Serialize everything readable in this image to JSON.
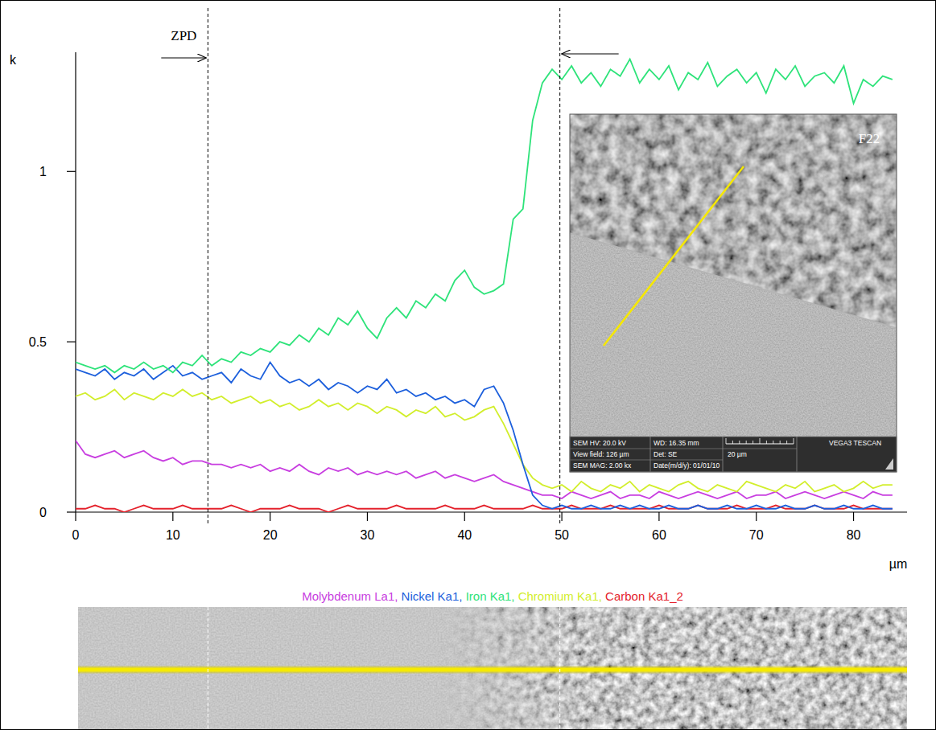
{
  "chart_data": {
    "type": "line",
    "x_label": "µm",
    "y_label": "k",
    "xlim": [
      0,
      85.5
    ],
    "ylim": [
      0,
      1.35
    ],
    "xticks": [
      0,
      10,
      20,
      30,
      40,
      50,
      60,
      70,
      80
    ],
    "yticks": [
      0,
      0.5,
      1
    ],
    "grid": false,
    "legend": "bottom",
    "legend_separator": ", ",
    "x": [
      0,
      1,
      2,
      3,
      4,
      5,
      6,
      7,
      8,
      9,
      10,
      11,
      12,
      13,
      14,
      15,
      16,
      17,
      18,
      19,
      20,
      21,
      22,
      23,
      24,
      25,
      26,
      27,
      28,
      29,
      30,
      31,
      32,
      33,
      34,
      35,
      36,
      37,
      38,
      39,
      40,
      41,
      42,
      43,
      44,
      45,
      46,
      47,
      48,
      49,
      50,
      51,
      52,
      53,
      54,
      55,
      56,
      57,
      58,
      59,
      60,
      61,
      62,
      63,
      64,
      65,
      66,
      67,
      68,
      69,
      70,
      71,
      72,
      73,
      74,
      75,
      76,
      77,
      78,
      79,
      80,
      81,
      82,
      83,
      84
    ],
    "series": [
      {
        "name": "Molybdenum La1",
        "color": "#c83ee0",
        "values": [
          0.21,
          0.17,
          0.16,
          0.17,
          0.18,
          0.16,
          0.17,
          0.18,
          0.16,
          0.15,
          0.16,
          0.14,
          0.15,
          0.15,
          0.14,
          0.14,
          0.13,
          0.14,
          0.13,
          0.14,
          0.12,
          0.13,
          0.12,
          0.14,
          0.12,
          0.11,
          0.13,
          0.12,
          0.13,
          0.11,
          0.12,
          0.11,
          0.12,
          0.11,
          0.12,
          0.1,
          0.11,
          0.12,
          0.1,
          0.11,
          0.1,
          0.09,
          0.1,
          0.11,
          0.09,
          0.08,
          0.07,
          0.06,
          0.05,
          0.05,
          0.04,
          0.06,
          0.05,
          0.04,
          0.05,
          0.06,
          0.04,
          0.05,
          0.05,
          0.04,
          0.06,
          0.05,
          0.04,
          0.05,
          0.06,
          0.05,
          0.04,
          0.05,
          0.06,
          0.04,
          0.05,
          0.05,
          0.06,
          0.04,
          0.05,
          0.06,
          0.05,
          0.04,
          0.05,
          0.06,
          0.05,
          0.04,
          0.06,
          0.05,
          0.05
        ]
      },
      {
        "name": "Nickel Ka1",
        "color": "#1c5fdc",
        "values": [
          0.42,
          0.41,
          0.4,
          0.42,
          0.39,
          0.41,
          0.4,
          0.42,
          0.39,
          0.41,
          0.43,
          0.4,
          0.41,
          0.39,
          0.4,
          0.41,
          0.38,
          0.42,
          0.4,
          0.39,
          0.44,
          0.4,
          0.38,
          0.39,
          0.37,
          0.39,
          0.36,
          0.38,
          0.37,
          0.35,
          0.37,
          0.36,
          0.39,
          0.35,
          0.36,
          0.34,
          0.35,
          0.33,
          0.34,
          0.32,
          0.33,
          0.31,
          0.36,
          0.37,
          0.32,
          0.24,
          0.14,
          0.05,
          0.02,
          0.01,
          0.02,
          0.01,
          0.01,
          0.02,
          0.01,
          0.01,
          0.02,
          0.01,
          0.02,
          0.01,
          0.01,
          0.02,
          0.01,
          0.01,
          0.02,
          0.01,
          0.01,
          0.02,
          0.01,
          0.01,
          0.02,
          0.01,
          0.01,
          0.02,
          0.01,
          0.01,
          0.02,
          0.01,
          0.01,
          0.02,
          0.01,
          0.01,
          0.02,
          0.01,
          0.01
        ]
      },
      {
        "name": "Iron Ka1",
        "color": "#2ee37a",
        "values": [
          0.44,
          0.43,
          0.42,
          0.43,
          0.41,
          0.43,
          0.42,
          0.44,
          0.42,
          0.43,
          0.41,
          0.44,
          0.43,
          0.46,
          0.43,
          0.45,
          0.44,
          0.47,
          0.46,
          0.48,
          0.47,
          0.5,
          0.49,
          0.52,
          0.5,
          0.54,
          0.52,
          0.57,
          0.55,
          0.59,
          0.54,
          0.51,
          0.57,
          0.6,
          0.57,
          0.62,
          0.6,
          0.64,
          0.62,
          0.68,
          0.71,
          0.66,
          0.64,
          0.65,
          0.67,
          0.86,
          0.89,
          1.15,
          1.26,
          1.3,
          1.27,
          1.31,
          1.26,
          1.29,
          1.25,
          1.3,
          1.28,
          1.33,
          1.26,
          1.3,
          1.27,
          1.31,
          1.24,
          1.29,
          1.27,
          1.32,
          1.25,
          1.28,
          1.3,
          1.26,
          1.29,
          1.23,
          1.3,
          1.27,
          1.31,
          1.25,
          1.28,
          1.29,
          1.26,
          1.31,
          1.2,
          1.27,
          1.25,
          1.28,
          1.27
        ]
      },
      {
        "name": "Chromium Ka1",
        "color": "#d2ee2c",
        "values": [
          0.34,
          0.35,
          0.33,
          0.34,
          0.36,
          0.33,
          0.35,
          0.34,
          0.33,
          0.35,
          0.34,
          0.36,
          0.34,
          0.35,
          0.33,
          0.34,
          0.32,
          0.33,
          0.34,
          0.32,
          0.33,
          0.31,
          0.32,
          0.3,
          0.31,
          0.33,
          0.31,
          0.32,
          0.3,
          0.32,
          0.31,
          0.29,
          0.31,
          0.3,
          0.28,
          0.3,
          0.29,
          0.31,
          0.28,
          0.29,
          0.27,
          0.28,
          0.3,
          0.31,
          0.26,
          0.2,
          0.14,
          0.1,
          0.08,
          0.07,
          0.08,
          0.06,
          0.09,
          0.07,
          0.06,
          0.08,
          0.07,
          0.09,
          0.06,
          0.08,
          0.07,
          0.06,
          0.08,
          0.09,
          0.07,
          0.06,
          0.08,
          0.07,
          0.06,
          0.09,
          0.08,
          0.07,
          0.06,
          0.08,
          0.07,
          0.09,
          0.06,
          0.07,
          0.08,
          0.06,
          0.07,
          0.09,
          0.07,
          0.08,
          0.08
        ]
      },
      {
        "name": "Carbon Ka1_2",
        "color": "#e4222c",
        "values": [
          0.01,
          0.01,
          0.02,
          0.01,
          0.01,
          0,
          0.01,
          0.02,
          0.01,
          0.01,
          0.01,
          0.02,
          0.01,
          0.01,
          0.01,
          0.01,
          0.02,
          0.01,
          0,
          0.01,
          0.01,
          0.01,
          0.02,
          0.01,
          0.01,
          0.01,
          0,
          0.01,
          0.02,
          0.01,
          0.01,
          0.01,
          0.01,
          0.02,
          0.01,
          0.01,
          0.01,
          0.01,
          0.02,
          0.01,
          0.01,
          0.01,
          0.02,
          0.01,
          0.01,
          0.01,
          0.01,
          0.02,
          0.01,
          0.01,
          0.01,
          0.02,
          0.01,
          0.01,
          0.01,
          0.02,
          0.01,
          0.01,
          0.01,
          0.01,
          0.02,
          0.01,
          0.01,
          0.01,
          0.02,
          0.01,
          0.01,
          0.01,
          0.02,
          0.01,
          0.01,
          0.01,
          0.02,
          0.01,
          0.01,
          0.01,
          0.02,
          0.01,
          0.01,
          0.01,
          0.02,
          0.01,
          0.01,
          0.01,
          0.01
        ]
      }
    ],
    "markers": [
      {
        "x": 13.6,
        "label": "ZPD"
      },
      {
        "x": 49.8
      }
    ]
  },
  "inset_image": {
    "label": "F22",
    "info": {
      "hv": "SEM HV: 20.0 kV",
      "wd": "WD: 16.35 mm",
      "brand": "VEGA3 TESCAN",
      "view_field": "View field: 126 µm",
      "detector": "Det: SE",
      "scale_bar": "20 µm",
      "magnification": "SEM MAG: 2.00 kx",
      "date": "Date(m/d/y): 01/01/10"
    }
  }
}
